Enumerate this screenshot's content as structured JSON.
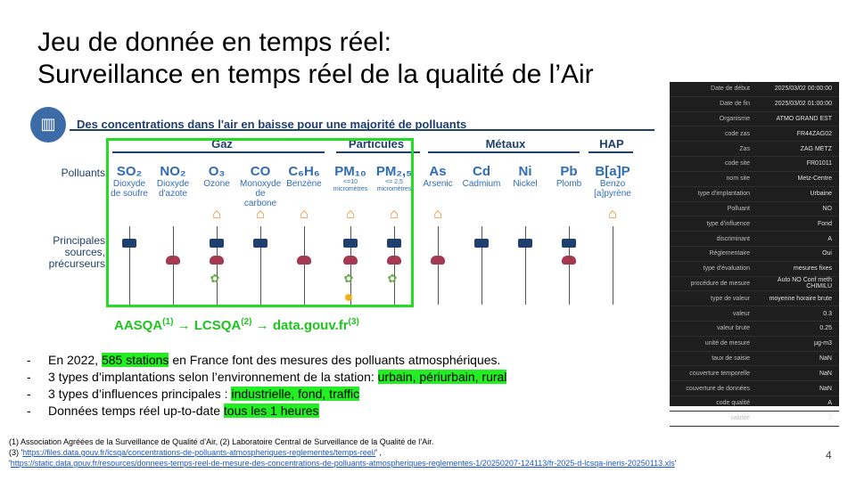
{
  "slide": {
    "title_line1": "Jeu de donnée en temps réel:",
    "title_line2": "Surveillance en temps réel de la qualité de l’Air",
    "page_number": "4"
  },
  "infographic": {
    "headline": "Des concentrations dans l'air en baisse pour une majorité de polluants",
    "groups": [
      "Gaz",
      "Particules",
      "Métaux",
      "HAP"
    ],
    "row_label_polluants": "Polluants",
    "row_label_sources_1": "Principales",
    "row_label_sources_2": "sources,",
    "row_label_sources_3": "précurseurs",
    "pollutants": [
      {
        "sym": "SO₂",
        "name1": "Dioxyde",
        "name2": "de soufre"
      },
      {
        "sym": "NO₂",
        "name1": "Dioxyde",
        "name2": "d'azote"
      },
      {
        "sym": "O₃",
        "name1": "Ozone",
        "name2": ""
      },
      {
        "sym": "CO",
        "name1": "Monoxyde",
        "name2": "de carbone"
      },
      {
        "sym": "C₆H₆",
        "name1": "Benzène",
        "name2": ""
      },
      {
        "sym": "PM₁₀",
        "name1": "<=10",
        "name2": "micromètres"
      },
      {
        "sym": "PM₂,₅",
        "name1": "<= 2,5",
        "name2": "micromètres"
      },
      {
        "sym": "As",
        "name1": "Arsenic",
        "name2": ""
      },
      {
        "sym": "Cd",
        "name1": "Cadmium",
        "name2": ""
      },
      {
        "sym": "Ni",
        "name1": "Nickel",
        "name2": ""
      },
      {
        "sym": "Pb",
        "name1": "Plomb",
        "name2": ""
      },
      {
        "sym": "B[a]P",
        "name1": "Benzo",
        "name2": "[a]pyrène"
      }
    ]
  },
  "sources_line": {
    "part1": "AASQA",
    "sup1": "(1)",
    "arrow1": " → LCSQA",
    "sup2": "(2)",
    "arrow2": " → data.gouv.fr",
    "sup3": "(3)"
  },
  "record_table": [
    {
      "key": "Date de début",
      "value": "2025/03/02 00:00:00"
    },
    {
      "key": "Date de fin",
      "value": "2025/03/02 01:00:00"
    },
    {
      "key": "Organisme",
      "value": "ATMO GRAND EST"
    },
    {
      "key": "code zas",
      "value": "FR44ZAG02"
    },
    {
      "key": "Zas",
      "value": "ZAG METZ"
    },
    {
      "key": "code site",
      "value": "FR01011"
    },
    {
      "key": "nom site",
      "value": "Metz-Centre"
    },
    {
      "key": "type d'implantation",
      "value": "Urbaine"
    },
    {
      "key": "Polluant",
      "value": "NO"
    },
    {
      "key": "type d'influence",
      "value": "Fond"
    },
    {
      "key": "discriminant",
      "value": "A"
    },
    {
      "key": "Réglementaire",
      "value": "Oui"
    },
    {
      "key": "type d'évaluation",
      "value": "mesures fixes"
    },
    {
      "key": "procédure de mesure",
      "value": "Auto NO Conf meth CHIMILU"
    },
    {
      "key": "type de valeur",
      "value": "moyenne horaire brute"
    },
    {
      "key": "valeur",
      "value": "0.3"
    },
    {
      "key": "valeur brute",
      "value": "0.25"
    },
    {
      "key": "unité de mesure",
      "value": "µg-m3"
    },
    {
      "key": "taux de saisie",
      "value": "NaN"
    },
    {
      "key": "couverture temporelle",
      "value": "NaN"
    },
    {
      "key": "couverture de données",
      "value": "NaN"
    },
    {
      "key": "code qualité",
      "value": "A"
    },
    {
      "key": "validité",
      "value": "1"
    }
  ],
  "bullets": [
    {
      "pre": "En 2022, ",
      "hl": "585 stations",
      "post": " en France font des mesures des polluants atmosphériques."
    },
    {
      "pre": "3 types d’implantations selon l’environnement de la station: ",
      "hl": "urbain, périurbain, rural",
      "post": ""
    },
    {
      "pre": "3 types d’influences principales : ",
      "hl": "industrielle, fond, traffic",
      "post": ""
    },
    {
      "pre": "Données temps réel up-to-date ",
      "hl": "tous les 1 heures",
      "post": ""
    }
  ],
  "footnotes": {
    "line1": "(1) Association Agréées de la Surveillance de Qualité d’Air, (2) Laboratoire Central de Surveillance de la Qualité de l’Air.",
    "line2_prefix": "(3) '",
    "link1": "https://files.data.gouv.fr/lcsqa/concentrations-de-polluants-atmospheriques-reglementes/temps-reel/",
    "line2_suffix": "' ,",
    "line3_prefix": "'",
    "link2": "https://static.data.gouv.fr/resources/donnees-temps-reel-de-mesure-des-concentrations-de-polluants-atmospheriques-reglementes-1/20250207-124113/fr-2025-d-lcsqa-ineris-20250113.xls",
    "line3_suffix": "'"
  },
  "colors": {
    "highlight": "#22ee22",
    "box": "#22dd22",
    "navy": "#1f3f6e",
    "blue": "#2f6cb5",
    "table_bg": "#1e1e1e"
  }
}
